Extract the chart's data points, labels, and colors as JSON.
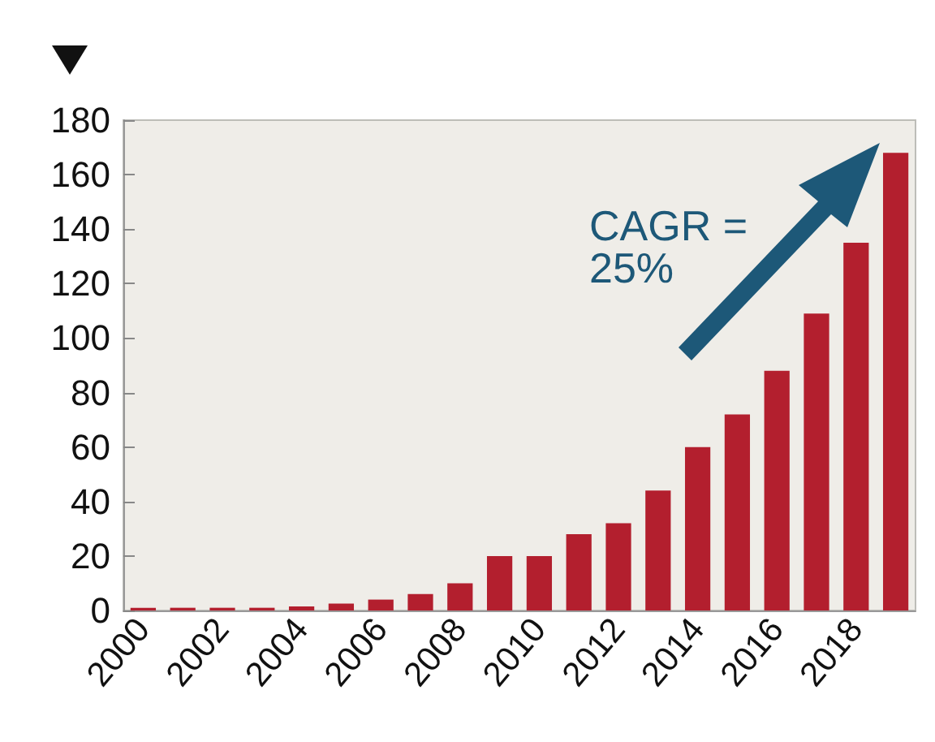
{
  "chart_data": {
    "type": "bar",
    "categories": [
      "2000",
      null,
      "2002",
      null,
      "2004",
      null,
      "2006",
      null,
      "2008",
      null,
      "2010",
      null,
      "2012",
      null,
      "2014",
      null,
      "2016",
      null,
      "2018",
      null
    ],
    "values": [
      1,
      1,
      1,
      1,
      1.5,
      2.5,
      4,
      6,
      10,
      20,
      20,
      28,
      32,
      44,
      60,
      72,
      88,
      109,
      135,
      168
    ],
    "color": "#b31f2e",
    "ylim": [
      0,
      180
    ],
    "yticks": [
      0,
      20,
      40,
      60,
      80,
      100,
      120,
      140,
      160,
      180
    ],
    "grid": false,
    "annotations": [
      "CAGR =\n25%"
    ]
  }
}
